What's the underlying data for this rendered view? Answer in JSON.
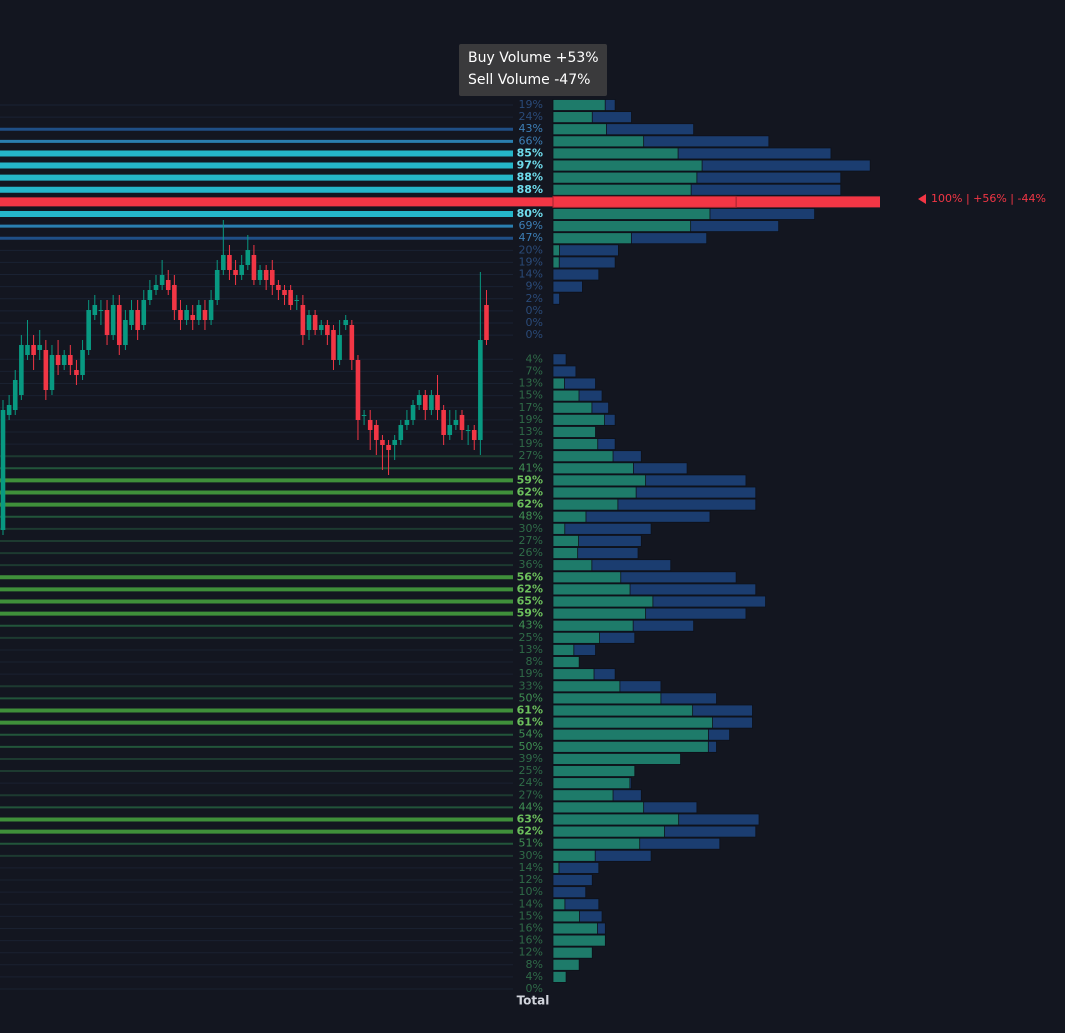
{
  "chart_data": [
    {
      "type": "candlestick",
      "ylim": [
        -33,
        1000
      ],
      "up_color": "#089981",
      "down_color": "#f23645",
      "ohlc": [
        [
          470,
          600,
          465,
          590
        ],
        [
          585,
          605,
          580,
          595
        ],
        [
          590,
          630,
          585,
          620
        ],
        [
          605,
          665,
          600,
          655
        ],
        [
          645,
          680,
          640,
          655
        ],
        [
          655,
          665,
          630,
          645
        ],
        [
          650,
          670,
          640,
          655
        ],
        [
          650,
          660,
          600,
          610
        ],
        [
          610,
          655,
          605,
          645
        ],
        [
          645,
          660,
          625,
          635
        ],
        [
          635,
          650,
          630,
          645
        ],
        [
          645,
          655,
          625,
          635
        ],
        [
          630,
          640,
          615,
          625
        ],
        [
          625,
          660,
          620,
          650
        ],
        [
          650,
          700,
          645,
          690
        ],
        [
          685,
          705,
          680,
          695
        ],
        [
          690,
          700,
          675,
          690
        ],
        [
          690,
          700,
          655,
          665
        ],
        [
          665,
          705,
          660,
          695
        ],
        [
          695,
          705,
          645,
          655
        ],
        [
          655,
          690,
          650,
          680
        ],
        [
          675,
          700,
          670,
          690
        ],
        [
          690,
          700,
          660,
          670
        ],
        [
          675,
          710,
          670,
          700
        ],
        [
          700,
          720,
          695,
          710
        ],
        [
          710,
          725,
          705,
          715
        ],
        [
          715,
          740,
          710,
          725
        ],
        [
          720,
          730,
          705,
          710
        ],
        [
          715,
          725,
          680,
          690
        ],
        [
          690,
          700,
          670,
          680
        ],
        [
          680,
          695,
          675,
          690
        ],
        [
          685,
          695,
          670,
          680
        ],
        [
          680,
          700,
          675,
          695
        ],
        [
          690,
          700,
          670,
          680
        ],
        [
          680,
          710,
          675,
          700
        ],
        [
          700,
          740,
          695,
          730
        ],
        [
          730,
          780,
          725,
          745
        ],
        [
          745,
          755,
          720,
          730
        ],
        [
          730,
          740,
          715,
          725
        ],
        [
          725,
          745,
          720,
          735
        ],
        [
          735,
          765,
          730,
          750
        ],
        [
          745,
          755,
          715,
          720
        ],
        [
          720,
          735,
          715,
          730
        ],
        [
          730,
          735,
          710,
          720
        ],
        [
          730,
          740,
          705,
          715
        ],
        [
          715,
          720,
          700,
          710
        ],
        [
          710,
          715,
          695,
          705
        ],
        [
          710,
          715,
          690,
          695
        ],
        [
          700,
          705,
          690,
          700
        ],
        [
          695,
          705,
          655,
          665
        ],
        [
          670,
          690,
          660,
          685
        ],
        [
          685,
          690,
          665,
          670
        ],
        [
          670,
          680,
          665,
          675
        ],
        [
          675,
          680,
          655,
          665
        ],
        [
          670,
          675,
          630,
          640
        ],
        [
          640,
          680,
          635,
          665
        ],
        [
          675,
          685,
          670,
          680
        ],
        [
          675,
          680,
          630,
          640
        ],
        [
          640,
          645,
          560,
          580
        ],
        [
          585,
          590,
          575,
          585
        ],
        [
          580,
          590,
          550,
          570
        ],
        [
          575,
          580,
          545,
          560
        ],
        [
          560,
          565,
          530,
          555
        ],
        [
          555,
          560,
          525,
          550
        ],
        [
          555,
          565,
          540,
          560
        ],
        [
          560,
          580,
          555,
          575
        ],
        [
          575,
          590,
          570,
          580
        ],
        [
          580,
          600,
          575,
          595
        ],
        [
          595,
          610,
          590,
          605
        ],
        [
          605,
          610,
          580,
          590
        ],
        [
          590,
          610,
          585,
          605
        ],
        [
          605,
          625,
          580,
          590
        ],
        [
          590,
          595,
          555,
          565
        ],
        [
          565,
          590,
          560,
          575
        ],
        [
          575,
          590,
          570,
          580
        ],
        [
          585,
          590,
          560,
          570
        ],
        [
          570,
          575,
          555,
          570
        ],
        [
          570,
          575,
          550,
          560
        ],
        [
          560,
          728,
          545,
          660
        ],
        [
          695,
          710,
          655,
          660
        ]
      ]
    },
    {
      "type": "volume_profile",
      "xlim": [
        0,
        100
      ],
      "buy_color": "#1e7b6a",
      "sell_color": "#1b3d70",
      "poc_color": "#f23645",
      "labels": [
        "19%",
        "24%",
        "43%",
        "66%",
        "85%",
        "97%",
        "88%",
        "88%",
        null,
        "80%",
        "69%",
        "47%",
        "20%",
        "19%",
        "14%",
        "9%",
        "2%",
        "0%",
        "0%",
        "0%",
        null,
        "4%",
        "7%",
        "13%",
        "15%",
        "17%",
        "19%",
        "13%",
        "19%",
        "27%",
        "41%",
        "59%",
        "62%",
        "62%",
        "48%",
        "30%",
        "27%",
        "26%",
        "36%",
        "56%",
        "62%",
        "65%",
        "59%",
        "43%",
        "25%",
        "13%",
        "8%",
        "19%",
        "33%",
        "50%",
        "61%",
        "61%",
        "54%",
        "50%",
        "39%",
        "25%",
        "24%",
        "27%",
        "44%",
        "63%",
        "62%",
        "51%",
        "30%",
        "14%",
        "12%",
        "10%",
        "14%",
        "15%",
        "16%",
        "16%",
        "12%",
        "8%",
        "4%",
        "0%"
      ],
      "values": [
        19,
        24,
        43,
        66,
        85,
        97,
        88,
        88,
        100,
        80,
        69,
        47,
        20,
        19,
        14,
        9,
        2,
        0,
        0,
        0,
        null,
        4,
        7,
        13,
        15,
        17,
        19,
        13,
        19,
        27,
        41,
        59,
        62,
        62,
        48,
        30,
        27,
        26,
        36,
        56,
        62,
        65,
        59,
        43,
        25,
        13,
        8,
        19,
        33,
        50,
        61,
        61,
        54,
        50,
        39,
        25,
        24,
        27,
        44,
        63,
        62,
        51,
        30,
        14,
        12,
        10,
        14,
        15,
        16,
        16,
        12,
        8,
        4,
        0
      ],
      "buy_share": [
        84,
        50,
        38,
        42,
        45,
        47,
        50,
        48,
        56,
        60,
        61,
        51,
        10,
        10,
        0,
        0,
        0,
        0,
        0,
        0,
        null,
        0,
        0,
        27,
        53,
        70,
        83,
        100,
        72,
        68,
        60,
        48,
        41,
        32,
        21,
        12,
        29,
        29,
        33,
        37,
        38,
        47,
        48,
        57,
        57,
        49,
        100,
        66,
        62,
        66,
        70,
        80,
        88,
        95,
        100,
        100,
        98,
        68,
        63,
        61,
        55,
        52,
        43,
        13,
        0,
        0,
        26,
        54,
        85,
        100,
        100,
        100,
        100,
        0
      ],
      "poc_label": "100% | +56% | -44%",
      "footer": "Total"
    }
  ],
  "tooltip": {
    "lines": [
      "Buy Volume +53%",
      "Sell Volume -47%"
    ]
  }
}
